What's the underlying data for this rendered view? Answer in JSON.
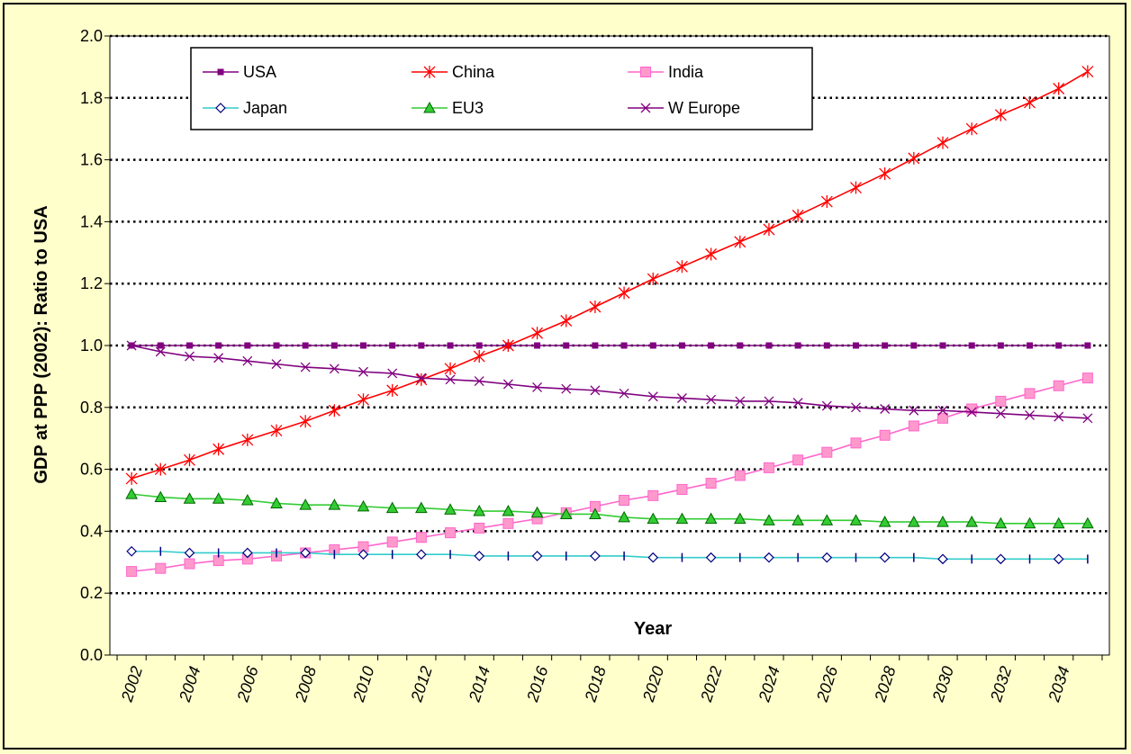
{
  "chart_data": {
    "type": "line",
    "title": "",
    "xlabel": "Year",
    "ylabel": "GDP at PPP (2002): Ratio to USA",
    "ylim": [
      0,
      2.0
    ],
    "yticks": [
      "0.0",
      "0.2",
      "0.4",
      "0.6",
      "0.8",
      "1.0",
      "1.2",
      "1.4",
      "1.6",
      "1.8",
      "2.0"
    ],
    "xtick_labels": [
      "2002",
      "2004",
      "2006",
      "2008",
      "2010",
      "2012",
      "2014",
      "2016",
      "2018",
      "2020",
      "2022",
      "2024",
      "2026",
      "2028",
      "2030",
      "2032",
      "2034"
    ],
    "grid": "horizontal dotted",
    "legend_position": "top-left",
    "x": [
      2002,
      2003,
      2004,
      2005,
      2006,
      2007,
      2008,
      2009,
      2010,
      2011,
      2012,
      2013,
      2014,
      2015,
      2016,
      2017,
      2018,
      2019,
      2020,
      2021,
      2022,
      2023,
      2024,
      2025,
      2026,
      2027,
      2028,
      2029,
      2030,
      2031,
      2032,
      2033,
      2034,
      2035
    ],
    "series": [
      {
        "name": "USA",
        "color": "#800080",
        "marker": "square-small",
        "values": [
          1.0,
          1.0,
          1.0,
          1.0,
          1.0,
          1.0,
          1.0,
          1.0,
          1.0,
          1.0,
          1.0,
          1.0,
          1.0,
          1.0,
          1.0,
          1.0,
          1.0,
          1.0,
          1.0,
          1.0,
          1.0,
          1.0,
          1.0,
          1.0,
          1.0,
          1.0,
          1.0,
          1.0,
          1.0,
          1.0,
          1.0,
          1.0,
          1.0,
          1.0
        ]
      },
      {
        "name": "China",
        "color": "#FF0000",
        "marker": "star",
        "values": [
          0.57,
          0.6,
          0.63,
          0.665,
          0.695,
          0.725,
          0.755,
          0.79,
          0.825,
          0.855,
          0.89,
          0.925,
          0.965,
          1.0,
          1.04,
          1.08,
          1.125,
          1.17,
          1.215,
          1.255,
          1.295,
          1.335,
          1.375,
          1.42,
          1.465,
          1.51,
          1.555,
          1.605,
          1.655,
          1.7,
          1.745,
          1.785,
          1.83,
          1.885
        ]
      },
      {
        "name": "India",
        "color": "#FF66CC",
        "marker": "square",
        "values": [
          0.27,
          0.28,
          0.295,
          0.305,
          0.31,
          0.32,
          0.33,
          0.34,
          0.35,
          0.365,
          0.38,
          0.395,
          0.41,
          0.425,
          0.44,
          0.46,
          0.48,
          0.5,
          0.515,
          0.535,
          0.555,
          0.58,
          0.605,
          0.63,
          0.655,
          0.685,
          0.71,
          0.74,
          0.765,
          0.795,
          0.82,
          0.845,
          0.87,
          0.895
        ]
      },
      {
        "name": "Japan",
        "color": "#33CCCC",
        "marker": "diamond",
        "values": [
          0.335,
          0.335,
          0.33,
          0.33,
          0.33,
          0.33,
          0.33,
          0.325,
          0.325,
          0.325,
          0.325,
          0.325,
          0.32,
          0.32,
          0.32,
          0.32,
          0.32,
          0.32,
          0.315,
          0.315,
          0.315,
          0.315,
          0.315,
          0.315,
          0.315,
          0.315,
          0.315,
          0.315,
          0.31,
          0.31,
          0.31,
          0.31,
          0.31,
          0.31
        ]
      },
      {
        "name": "EU3",
        "color": "#33CC33",
        "marker": "triangle",
        "values": [
          0.52,
          0.51,
          0.505,
          0.505,
          0.5,
          0.49,
          0.485,
          0.485,
          0.48,
          0.475,
          0.475,
          0.47,
          0.465,
          0.465,
          0.46,
          0.455,
          0.455,
          0.445,
          0.44,
          0.44,
          0.44,
          0.44,
          0.435,
          0.435,
          0.435,
          0.435,
          0.43,
          0.43,
          0.43,
          0.43,
          0.425,
          0.425,
          0.425,
          0.425
        ]
      },
      {
        "name": "W Europe",
        "color": "#800080",
        "marker": "x",
        "values": [
          1.0,
          0.98,
          0.965,
          0.96,
          0.95,
          0.94,
          0.93,
          0.925,
          0.915,
          0.91,
          0.895,
          0.89,
          0.885,
          0.875,
          0.865,
          0.86,
          0.855,
          0.845,
          0.835,
          0.83,
          0.825,
          0.82,
          0.82,
          0.815,
          0.805,
          0.8,
          0.795,
          0.79,
          0.79,
          0.785,
          0.78,
          0.775,
          0.77,
          0.765
        ]
      }
    ]
  }
}
